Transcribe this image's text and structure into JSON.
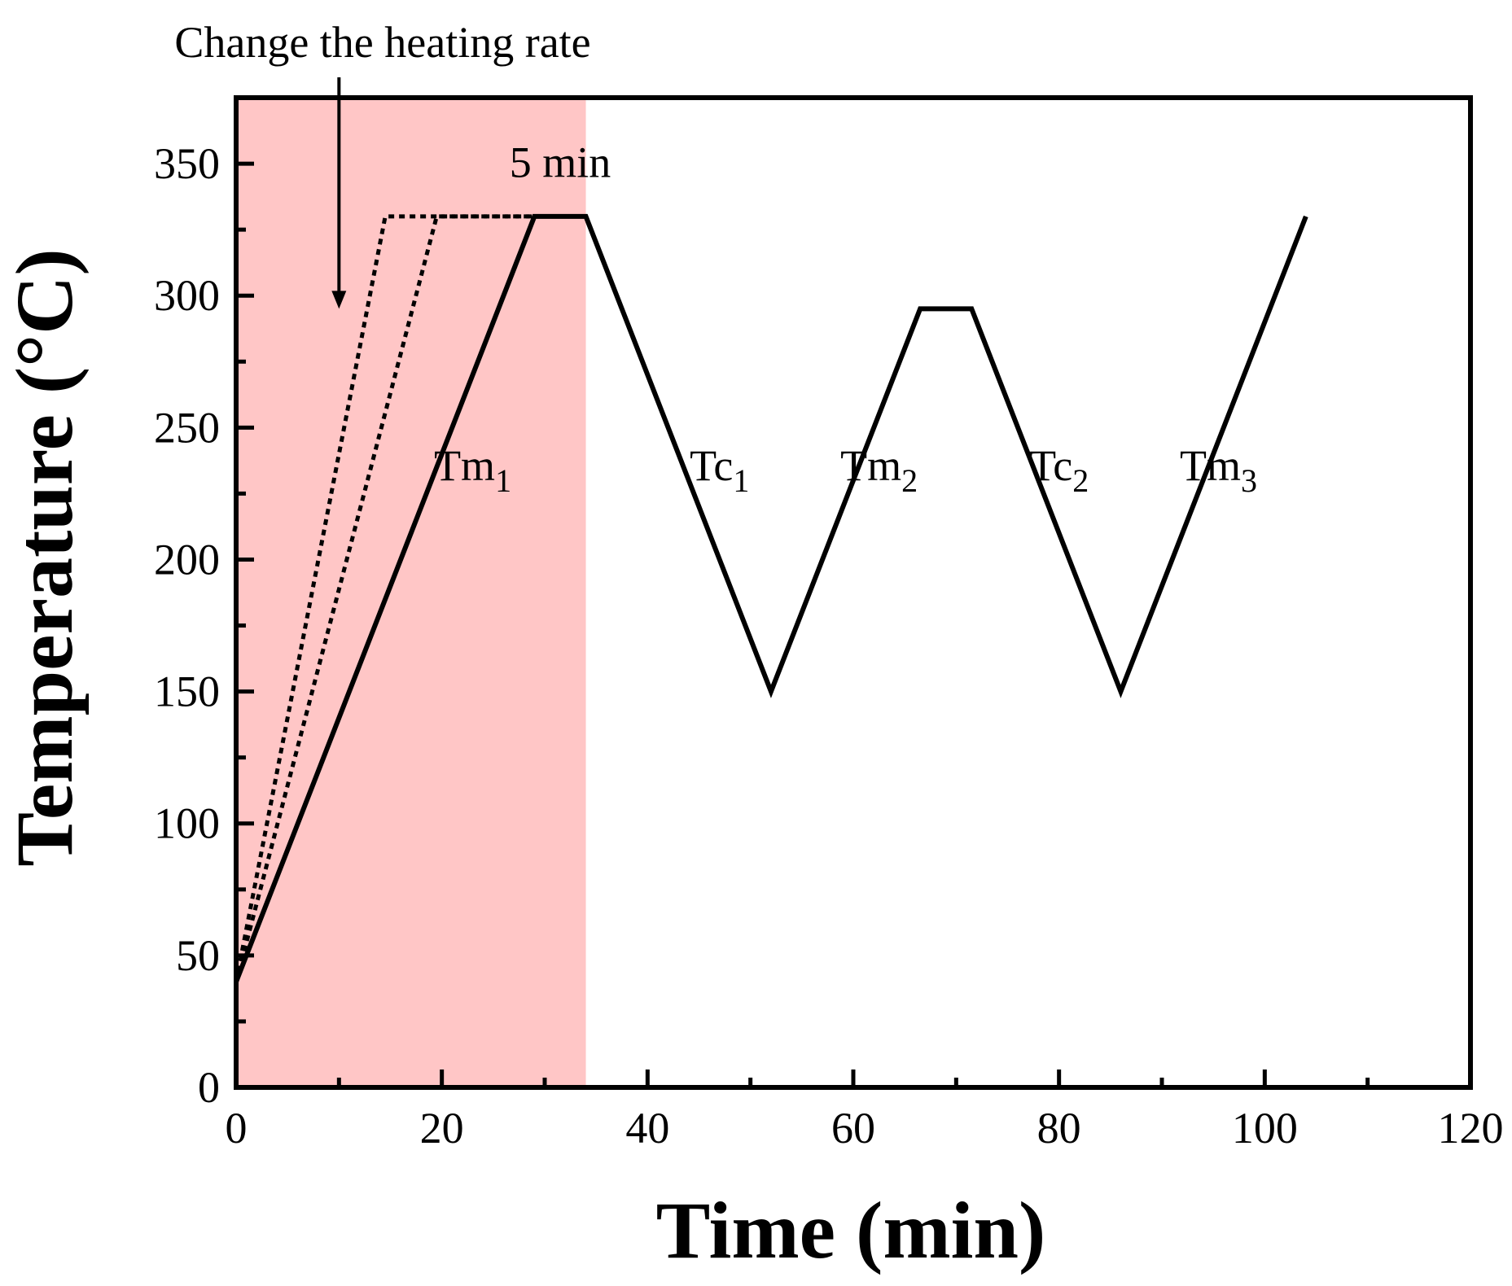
{
  "chart_data": {
    "type": "line",
    "title": "",
    "xlabel": "Time (min)",
    "ylabel": "Temperature (°C)",
    "xlim": [
      0,
      120
    ],
    "ylim": [
      0,
      375
    ],
    "xticks": [
      0,
      20,
      40,
      60,
      80,
      100,
      120
    ],
    "yticks": [
      0,
      50,
      100,
      150,
      200,
      250,
      300,
      350
    ],
    "xtick_labels": [
      "0",
      "20",
      "40",
      "60",
      "80",
      "100",
      "120"
    ],
    "ytick_labels": [
      "0",
      "50",
      "100",
      "150",
      "200",
      "250",
      "300",
      "350"
    ],
    "grid": false,
    "shaded_region": {
      "x": [
        0,
        34
      ],
      "color": "#ffc6c6"
    },
    "series": [
      {
        "name": "temperature-program",
        "style": "solid",
        "x": [
          0,
          29,
          34,
          52,
          66.5,
          71.5,
          86,
          104
        ],
        "y": [
          40,
          330,
          330,
          150,
          295,
          295,
          150,
          330
        ]
      },
      {
        "name": "faster-heating-rate-1",
        "style": "dotted",
        "x": [
          0,
          14.5,
          29
        ],
        "y": [
          40,
          330,
          330
        ]
      },
      {
        "name": "faster-heating-rate-2",
        "style": "dotted",
        "x": [
          0,
          19.5,
          29
        ],
        "y": [
          40,
          330,
          330
        ]
      }
    ],
    "annotations": {
      "change_rate": {
        "text": "Change the heating rate",
        "arrow_x": 10,
        "arrow_y_start": 380,
        "arrow_y_end": 295
      },
      "hold_time": {
        "text": "5 min",
        "x": 31.5,
        "y": 345
      },
      "phases": [
        {
          "main": "Tm",
          "sub": "1",
          "x": 23,
          "y": 230
        },
        {
          "main": "Tc",
          "sub": "1",
          "x": 47,
          "y": 230
        },
        {
          "main": "Tm",
          "sub": "2",
          "x": 62.5,
          "y": 230
        },
        {
          "main": "Tc",
          "sub": "2",
          "x": 80,
          "y": 230
        },
        {
          "main": "Tm",
          "sub": "3",
          "x": 95.5,
          "y": 230
        }
      ]
    },
    "colors": {
      "shade": "#ffc6c6",
      "line": "#000000",
      "axis": "#000000"
    }
  }
}
